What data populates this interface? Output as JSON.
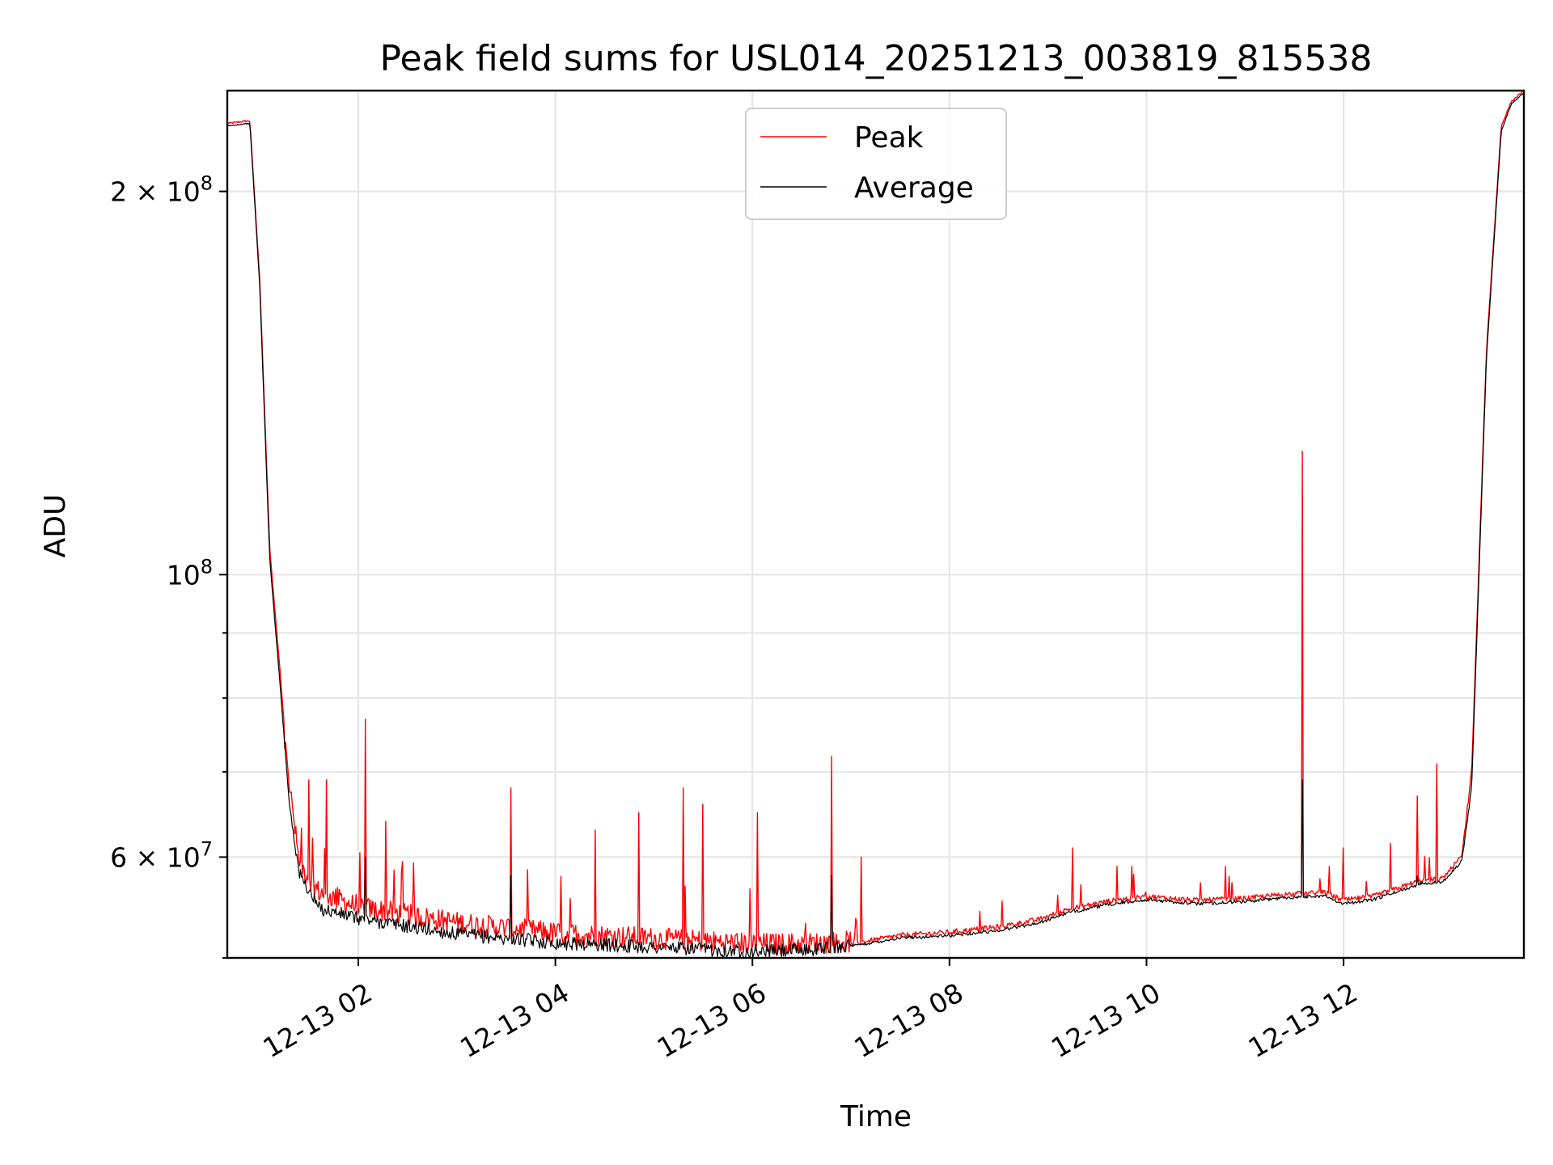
{
  "chart_data": {
    "type": "line",
    "title": "Peak field sums for USL014_20251213_003819_815538",
    "xlabel": "Time",
    "ylabel": "ADU",
    "yscale": "log",
    "xlim_hours": [
      0.67,
      13.83
    ],
    "ylim": [
      50000000,
      240000000
    ],
    "grid": true,
    "legend_position": "upper center",
    "x_tick_labels": [
      {
        "hour": 2,
        "label": "12-13 02"
      },
      {
        "hour": 4,
        "label": "12-13 04"
      },
      {
        "hour": 6,
        "label": "12-13 06"
      },
      {
        "hour": 8,
        "label": "12-13 08"
      },
      {
        "hour": 10,
        "label": "12-13 10"
      },
      {
        "hour": 12,
        "label": "12-13 12"
      }
    ],
    "y_major_ticks": [
      {
        "value": 60000000,
        "base": "6 × 10",
        "exp": "7"
      },
      {
        "value": 100000000,
        "base": "10",
        "exp": "8"
      },
      {
        "value": 200000000,
        "base": "2 × 10",
        "exp": "8"
      }
    ],
    "y_minor_ticks": [
      50000000,
      70000000,
      80000000,
      90000000
    ],
    "series": [
      {
        "name": "Peak",
        "color": "#ff0000",
        "baseline": [
          [
            0.67,
            226000000
          ],
          [
            0.85,
            227000000
          ],
          [
            0.9,
            227000000
          ],
          [
            1.0,
            170000000
          ],
          [
            1.1,
            105000000
          ],
          [
            1.2,
            85000000
          ],
          [
            1.3,
            68000000
          ],
          [
            1.4,
            59000000
          ],
          [
            1.6,
            56000000
          ],
          [
            2.0,
            54500000
          ],
          [
            3.0,
            53000000
          ],
          [
            4.0,
            52000000
          ],
          [
            5.0,
            51500000
          ],
          [
            6.0,
            51000000
          ],
          [
            6.5,
            51000000
          ],
          [
            7.0,
            51200000
          ],
          [
            7.5,
            52000000
          ],
          [
            8.0,
            52300000
          ],
          [
            8.5,
            52800000
          ],
          [
            8.9,
            53500000
          ],
          [
            9.2,
            54500000
          ],
          [
            9.6,
            55300000
          ],
          [
            10.0,
            55800000
          ],
          [
            10.5,
            55400000
          ],
          [
            11.0,
            55600000
          ],
          [
            11.4,
            56000000
          ],
          [
            11.8,
            56200000
          ],
          [
            12.0,
            55400000
          ],
          [
            12.3,
            55800000
          ],
          [
            12.6,
            56800000
          ],
          [
            12.8,
            57500000
          ],
          [
            13.0,
            57600000
          ],
          [
            13.2,
            60000000
          ],
          [
            13.3,
            70000000
          ],
          [
            13.45,
            150000000
          ],
          [
            13.6,
            225000000
          ],
          [
            13.7,
            235000000
          ],
          [
            13.83,
            240000000
          ]
        ],
        "spikes": [
          [
            1.25,
            73000000
          ],
          [
            1.5,
            69000000
          ],
          [
            1.68,
            69000000
          ],
          [
            2.07,
            77000000
          ],
          [
            2.28,
            64000000
          ],
          [
            3.55,
            68000000
          ],
          [
            4.4,
            63000000
          ],
          [
            4.85,
            65000000
          ],
          [
            5.3,
            68000000
          ],
          [
            5.5,
            66000000
          ],
          [
            6.05,
            65000000
          ],
          [
            6.8,
            72000000
          ],
          [
            7.1,
            60000000
          ],
          [
            9.25,
            61000000
          ],
          [
            9.7,
            59000000
          ],
          [
            9.85,
            59000000
          ],
          [
            10.8,
            59000000
          ],
          [
            11.58,
            125000000
          ],
          [
            11.85,
            59000000
          ],
          [
            12.0,
            61000000
          ],
          [
            12.48,
            61500000
          ],
          [
            12.75,
            67000000
          ],
          [
            12.95,
            71000000
          ]
        ]
      },
      {
        "name": "Average",
        "color": "#000000",
        "baseline": [
          [
            0.67,
            225000000
          ],
          [
            0.85,
            226000000
          ],
          [
            0.9,
            226000000
          ],
          [
            1.0,
            168000000
          ],
          [
            1.1,
            103000000
          ],
          [
            1.2,
            83000000
          ],
          [
            1.3,
            66000000
          ],
          [
            1.4,
            58000000
          ],
          [
            1.6,
            54500000
          ],
          [
            2.0,
            53500000
          ],
          [
            3.0,
            52000000
          ],
          [
            4.0,
            51200000
          ],
          [
            5.0,
            50800000
          ],
          [
            6.0,
            50400000
          ],
          [
            6.5,
            50500000
          ],
          [
            7.0,
            51000000
          ],
          [
            7.5,
            51800000
          ],
          [
            8.0,
            52000000
          ],
          [
            8.5,
            52500000
          ],
          [
            8.9,
            53200000
          ],
          [
            9.2,
            54200000
          ],
          [
            9.6,
            55000000
          ],
          [
            10.0,
            55500000
          ],
          [
            10.5,
            55100000
          ],
          [
            11.0,
            55300000
          ],
          [
            11.4,
            55700000
          ],
          [
            11.8,
            55900000
          ],
          [
            12.0,
            55100000
          ],
          [
            12.3,
            55500000
          ],
          [
            12.6,
            56500000
          ],
          [
            12.8,
            57200000
          ],
          [
            13.0,
            57300000
          ],
          [
            13.2,
            59500000
          ],
          [
            13.3,
            68000000
          ],
          [
            13.45,
            148000000
          ],
          [
            13.6,
            223000000
          ],
          [
            13.7,
            234000000
          ],
          [
            13.83,
            239000000
          ]
        ],
        "spikes": [
          [
            2.07,
            60000000
          ],
          [
            3.55,
            58000000
          ],
          [
            6.8,
            58000000
          ],
          [
            11.58,
            69000000
          ],
          [
            12.75,
            58000000
          ]
        ]
      }
    ]
  }
}
